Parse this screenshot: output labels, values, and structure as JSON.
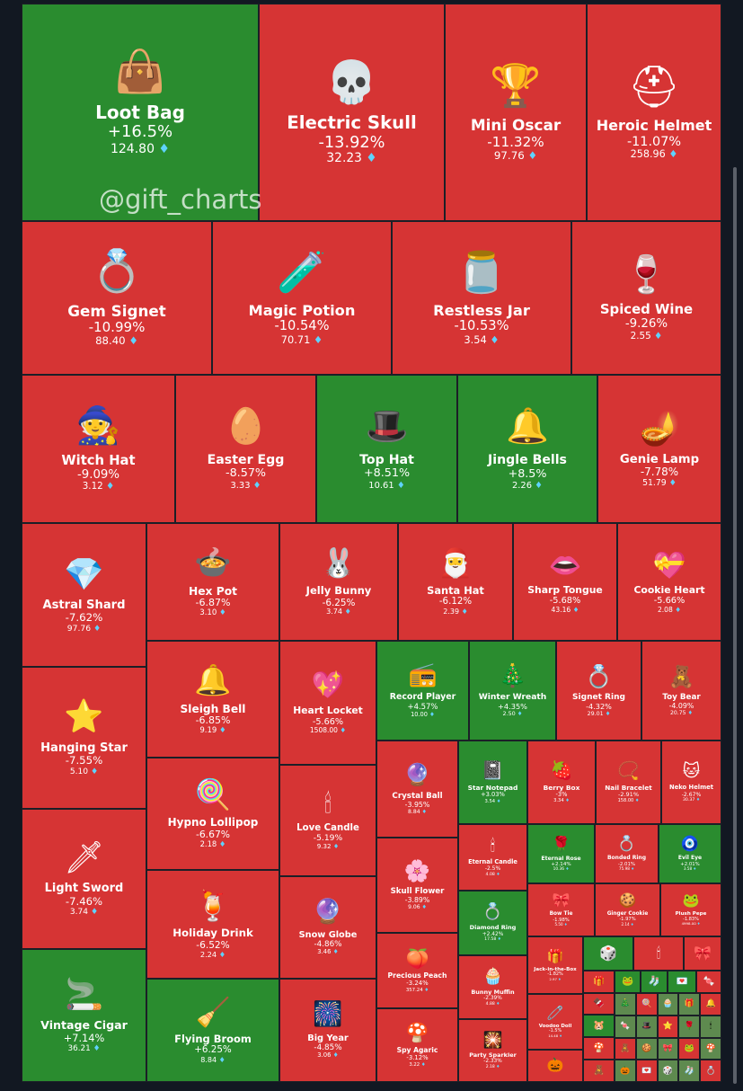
{
  "watermark": "@gift_charts",
  "colors": {
    "up": "#2a8c2f",
    "down": "#d63434",
    "gem": "#5fd3ff"
  },
  "items": [
    {
      "name": "Loot Bag",
      "change": "+16.5%",
      "price": "124.80",
      "icon": "bag-icon",
      "glyph": "👜"
    },
    {
      "name": "Electric Skull",
      "change": "-13.92%",
      "price": "32.23",
      "icon": "skull-icon",
      "glyph": "💀"
    },
    {
      "name": "Mini Oscar",
      "change": "-11.32%",
      "price": "97.76",
      "icon": "trophy-icon",
      "glyph": "🏆"
    },
    {
      "name": "Heroic Helmet",
      "change": "-11.07%",
      "price": "258.96",
      "icon": "helmet-icon",
      "glyph": "⛑"
    },
    {
      "name": "Gem Signet",
      "change": "-10.99%",
      "price": "88.40",
      "icon": "ring-icon",
      "glyph": "💍"
    },
    {
      "name": "Magic Potion",
      "change": "-10.54%",
      "price": "70.71",
      "icon": "potion-icon",
      "glyph": "🧪"
    },
    {
      "name": "Restless Jar",
      "change": "-10.53%",
      "price": "3.54",
      "icon": "jar-icon",
      "glyph": "🫙"
    },
    {
      "name": "Spiced Wine",
      "change": "-9.26%",
      "price": "2.55",
      "icon": "wine-icon",
      "glyph": "🍷"
    },
    {
      "name": "Witch Hat",
      "change": "-9.09%",
      "price": "3.12",
      "icon": "witch-hat-icon",
      "glyph": "🧙"
    },
    {
      "name": "Easter Egg",
      "change": "-8.57%",
      "price": "3.33",
      "icon": "egg-icon",
      "glyph": "🥚"
    },
    {
      "name": "Top Hat",
      "change": "+8.51%",
      "price": "10.61",
      "icon": "top-hat-icon",
      "glyph": "🎩"
    },
    {
      "name": "Jingle Bells",
      "change": "+8.5%",
      "price": "2.26",
      "icon": "bells-icon",
      "glyph": "🔔"
    },
    {
      "name": "Genie Lamp",
      "change": "-7.78%",
      "price": "51.79",
      "icon": "lamp-icon",
      "glyph": "🪔"
    },
    {
      "name": "Astral Shard",
      "change": "-7.62%",
      "price": "97.76",
      "icon": "crystal-icon",
      "glyph": "💎"
    },
    {
      "name": "Hex Pot",
      "change": "-6.87%",
      "price": "3.10",
      "icon": "cauldron-icon",
      "glyph": "🍲"
    },
    {
      "name": "Jelly Bunny",
      "change": "-6.25%",
      "price": "3.74",
      "icon": "bunny-icon",
      "glyph": "🐰"
    },
    {
      "name": "Santa Hat",
      "change": "-6.12%",
      "price": "2.39",
      "icon": "santa-hat-icon",
      "glyph": "🎅"
    },
    {
      "name": "Sharp Tongue",
      "change": "-5.68%",
      "price": "43.16",
      "icon": "lips-icon",
      "glyph": "👄"
    },
    {
      "name": "Cookie Heart",
      "change": "-5.66%",
      "price": "2.08",
      "icon": "cookie-heart-icon",
      "glyph": "💝"
    },
    {
      "name": "Record Player",
      "change": "+4.57%",
      "price": "10.00",
      "icon": "record-player-icon",
      "glyph": "📻"
    },
    {
      "name": "Winter Wreath",
      "change": "+4.35%",
      "price": "2.50",
      "icon": "wreath-icon",
      "glyph": "🎄"
    },
    {
      "name": "Signet Ring",
      "change": "-4.32%",
      "price": "29.01",
      "icon": "signet-ring-icon",
      "glyph": "💍"
    },
    {
      "name": "Toy Bear",
      "change": "-4.09%",
      "price": "20.75",
      "icon": "bear-icon",
      "glyph": "🧸"
    },
    {
      "name": "Sleigh Bell",
      "change": "-6.85%",
      "price": "9.19",
      "icon": "sleigh-bell-icon",
      "glyph": "🔔"
    },
    {
      "name": "Heart Locket",
      "change": "-5.66%",
      "price": "1508.00",
      "icon": "locket-icon",
      "glyph": "💖"
    },
    {
      "name": "Hanging Star",
      "change": "-7.55%",
      "price": "5.10",
      "icon": "star-icon",
      "glyph": "⭐"
    },
    {
      "name": "Crystal Ball",
      "change": "-3.95%",
      "price": "8.84",
      "icon": "crystal-ball-icon",
      "glyph": "🔮"
    },
    {
      "name": "Star Notepad",
      "change": "+3.03%",
      "price": "3.54",
      "icon": "notepad-icon",
      "glyph": "📓"
    },
    {
      "name": "Berry Box",
      "change": "-3%",
      "price": "3.34",
      "icon": "berry-box-icon",
      "glyph": "🍓"
    },
    {
      "name": "Nail Bracelet",
      "change": "-2.91%",
      "price": "158.00",
      "icon": "bracelet-icon",
      "glyph": "📿"
    },
    {
      "name": "Neko Helmet",
      "change": "-2.67%",
      "price": "30.37",
      "icon": "neko-helmet-icon",
      "glyph": "🐱"
    },
    {
      "name": "Hypno Lollipop",
      "change": "-6.67%",
      "price": "2.18",
      "icon": "lollipop-icon",
      "glyph": "🍭"
    },
    {
      "name": "Love Candle",
      "change": "-5.19%",
      "price": "9.32",
      "icon": "candle-icon",
      "glyph": "🕯"
    },
    {
      "name": "Eternal Candle",
      "change": "-2.5%",
      "price": "4.08",
      "icon": "eternal-candle-icon",
      "glyph": "🕯"
    },
    {
      "name": "Eternal Rose",
      "change": "+2.14%",
      "price": "10.36",
      "icon": "rose-icon",
      "glyph": "🌹"
    },
    {
      "name": "Bonded Ring",
      "change": "-2.01%",
      "price": "75.98",
      "icon": "bonded-ring-icon",
      "glyph": "💍"
    },
    {
      "name": "Evil Eye",
      "change": "+2.01%",
      "price": "3.58",
      "icon": "evil-eye-icon",
      "glyph": "🧿"
    },
    {
      "name": "Light Sword",
      "change": "-7.46%",
      "price": "3.74",
      "icon": "sword-icon",
      "glyph": "🗡"
    },
    {
      "name": "Skull Flower",
      "change": "-3.89%",
      "price": "9.06",
      "icon": "skull-flower-icon",
      "glyph": "🌸"
    },
    {
      "name": "Diamond Ring",
      "change": "+2.42%",
      "price": "17.58",
      "icon": "diamond-ring-icon",
      "glyph": "💍"
    },
    {
      "name": "Bow Tie",
      "change": "-1.98%",
      "price": "5.50",
      "icon": "bow-tie-icon",
      "glyph": "🎀"
    },
    {
      "name": "Ginger Cookie",
      "change": "-1.97%",
      "price": "2.14",
      "icon": "ginger-cookie-icon",
      "glyph": "🍪"
    },
    {
      "name": "Plush Pepe",
      "change": "-1.83%",
      "price": "4998.00",
      "icon": "pepe-icon",
      "glyph": "🐸"
    },
    {
      "name": "Holiday Drink",
      "change": "-6.52%",
      "price": "2.24",
      "icon": "drink-icon",
      "glyph": "🍹"
    },
    {
      "name": "Snow Globe",
      "change": "-4.86%",
      "price": "3.46",
      "icon": "snow-globe-icon",
      "glyph": "🔮"
    },
    {
      "name": "Precious Peach",
      "change": "-3.24%",
      "price": "357.24",
      "icon": "peach-icon",
      "glyph": "🍑"
    },
    {
      "name": "Bunny Muffin",
      "change": "-2.39%",
      "price": "4.88",
      "icon": "muffin-icon",
      "glyph": "🧁"
    },
    {
      "name": "Jack-in-the-Box",
      "change": "-1.82%",
      "price": "2.97",
      "icon": "jack-in-box-icon",
      "glyph": "🎁"
    },
    {
      "name": "Vintage Cigar",
      "change": "+7.14%",
      "price": "36.21",
      "icon": "cigar-icon",
      "glyph": "🚬"
    },
    {
      "name": "Flying Broom",
      "change": "+6.25%",
      "price": "8.84",
      "icon": "broom-icon",
      "glyph": "🧹"
    },
    {
      "name": "Big Year",
      "change": "-4.85%",
      "price": "3.06",
      "icon": "big-year-icon",
      "glyph": "🎆"
    },
    {
      "name": "Spy Agaric",
      "change": "-3.12%",
      "price": "3.22",
      "icon": "mushroom-icon",
      "glyph": "🍄"
    },
    {
      "name": "Party Sparkler",
      "change": "-2.33%",
      "price": "2.18",
      "icon": "sparkler-icon",
      "glyph": "🎇"
    },
    {
      "name": "Voodoo Doll",
      "change": "-1.5%",
      "price": "14.48",
      "icon": "voodoo-doll-icon",
      "glyph": "🧷"
    }
  ]
}
